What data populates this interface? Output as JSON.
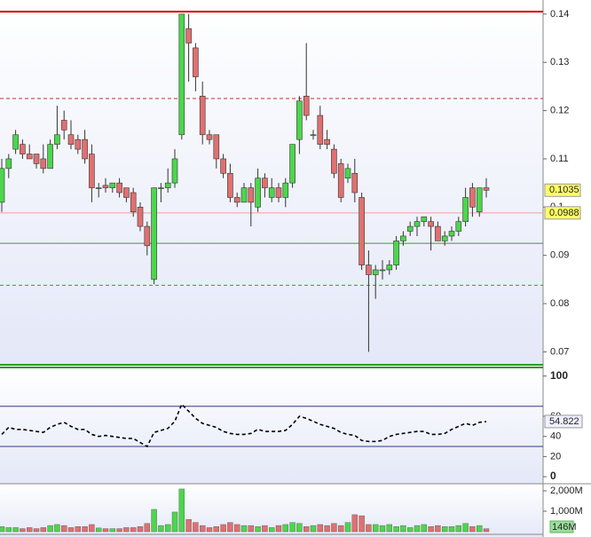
{
  "chart_data": [
    {
      "type": "candlestick",
      "open": [
        0.101,
        0.108,
        0.112,
        0.113,
        0.111,
        0.111,
        0.11,
        0.108,
        0.113,
        0.118,
        0.115,
        0.114,
        0.114,
        0.111,
        0.104,
        0.1045,
        0.104,
        0.105,
        0.104,
        0.103,
        0.1,
        0.096,
        0.085,
        0.104,
        0.104,
        0.105,
        0.115,
        0.137,
        0.133,
        0.123,
        0.115,
        0.115,
        0.11,
        0.107,
        0.102,
        0.101,
        0.104,
        0.1,
        0.106,
        0.102,
        0.104,
        0.102,
        0.105,
        0.114,
        0.123,
        0.115,
        0.119,
        0.114,
        0.112,
        0.109,
        0.106,
        0.107,
        0.102,
        0.088,
        0.086,
        0.087,
        0.087,
        0.088,
        0.093,
        0.095,
        0.096,
        0.097,
        0.097,
        0.096,
        0.093,
        0.094,
        0.095,
        0.097,
        0.104,
        0.099,
        0.104
      ],
      "high": [
        0.11,
        0.111,
        0.116,
        0.114,
        0.113,
        0.111,
        0.113,
        0.114,
        0.121,
        0.12,
        0.118,
        0.115,
        0.116,
        0.113,
        0.105,
        0.106,
        0.105,
        0.106,
        0.104,
        0.104,
        0.101,
        0.097,
        0.104,
        0.105,
        0.108,
        0.112,
        0.14,
        0.14,
        0.134,
        0.126,
        0.116,
        0.115,
        0.111,
        0.109,
        0.103,
        0.105,
        0.105,
        0.108,
        0.107,
        0.106,
        0.105,
        0.106,
        0.113,
        0.123,
        0.134,
        0.116,
        0.121,
        0.116,
        0.113,
        0.11,
        0.109,
        0.11,
        0.103,
        0.091,
        0.088,
        0.089,
        0.089,
        0.094,
        0.095,
        0.097,
        0.098,
        0.098,
        0.098,
        0.097,
        0.095,
        0.096,
        0.098,
        0.104,
        0.105,
        0.104,
        0.106
      ],
      "low": [
        0.099,
        0.106,
        0.111,
        0.11,
        0.11,
        0.108,
        0.107,
        0.108,
        0.112,
        0.114,
        0.112,
        0.111,
        0.109,
        0.101,
        0.102,
        0.103,
        0.103,
        0.102,
        0.101,
        0.098,
        0.095,
        0.09,
        0.084,
        0.101,
        0.103,
        0.104,
        0.114,
        0.126,
        0.124,
        0.113,
        0.113,
        0.108,
        0.106,
        0.101,
        0.1,
        0.101,
        0.096,
        0.099,
        0.102,
        0.101,
        0.101,
        0.1,
        0.104,
        0.111,
        0.118,
        0.114,
        0.112,
        0.112,
        0.106,
        0.101,
        0.105,
        0.101,
        0.087,
        0.07,
        0.081,
        0.085,
        0.086,
        0.087,
        0.092,
        0.094,
        0.094,
        0.096,
        0.091,
        0.093,
        0.092,
        0.093,
        0.094,
        0.096,
        0.098,
        0.098,
        0.102
      ],
      "close": [
        0.108,
        0.11,
        0.115,
        0.111,
        0.11,
        0.109,
        0.108,
        0.113,
        0.115,
        0.116,
        0.113,
        0.112,
        0.11,
        0.104,
        0.104,
        0.104,
        0.105,
        0.103,
        0.102,
        0.099,
        0.096,
        0.092,
        0.104,
        0.104,
        0.105,
        0.11,
        0.14,
        0.134,
        0.127,
        0.115,
        0.114,
        0.11,
        0.107,
        0.102,
        0.101,
        0.104,
        0.101,
        0.106,
        0.104,
        0.104,
        0.102,
        0.105,
        0.113,
        0.122,
        0.119,
        0.115,
        0.113,
        0.113,
        0.107,
        0.102,
        0.108,
        0.103,
        0.088,
        0.086,
        0.087,
        0.087,
        0.088,
        0.093,
        0.094,
        0.096,
        0.097,
        0.098,
        0.096,
        0.093,
        0.094,
        0.095,
        0.097,
        0.102,
        0.1,
        0.104,
        0.1035
      ],
      "up_color": "#4cd64c",
      "down_color": "#e07070",
      "ylim": [
        0.0675,
        0.142
      ],
      "yticks": [
        0.14,
        0.13,
        0.12,
        0.11,
        0.1,
        0.09,
        0.08,
        0.07
      ],
      "hlines": [
        {
          "value": 0.1405,
          "color": "#d40000",
          "dashed": false
        },
        {
          "value": 0.1225,
          "color": "#c03030",
          "dashed": true
        },
        {
          "value": 0.0988,
          "color": "#f0a0a0",
          "dashed": false
        },
        {
          "value": 0.0925,
          "color": "#3a9a3a",
          "dashed": false
        },
        {
          "value": 0.0838,
          "color": "#3a9a3a",
          "dashed": true
        }
      ]
    },
    {
      "type": "line",
      "values": [
        42,
        49,
        47,
        47,
        46,
        45,
        44,
        49,
        52,
        54,
        50,
        47,
        47,
        42,
        40,
        41,
        40,
        39,
        38,
        38,
        34,
        30,
        44,
        46,
        48,
        55,
        72,
        65,
        58,
        53,
        51,
        49,
        45,
        43,
        42,
        42,
        43,
        47,
        45,
        45,
        45,
        46,
        52,
        60,
        58,
        55,
        52,
        50,
        48,
        44,
        42,
        41,
        36,
        35,
        35,
        36,
        40,
        42,
        43,
        44,
        45,
        45,
        42,
        42,
        43,
        47,
        50,
        53,
        51,
        54,
        54.822
      ],
      "color": "#000000",
      "ylim": [
        -7,
        105
      ],
      "yticks": [
        100,
        60,
        40,
        20,
        0
      ],
      "hlines": [
        70,
        30
      ]
    },
    {
      "type": "bar",
      "values": [
        250,
        200,
        200,
        150,
        200,
        150,
        200,
        300,
        350,
        300,
        200,
        250,
        250,
        350,
        180,
        150,
        150,
        150,
        200,
        200,
        250,
        400,
        1090,
        300,
        350,
        960,
        2090,
        600,
        450,
        300,
        200,
        250,
        350,
        450,
        350,
        300,
        300,
        250,
        300,
        200,
        300,
        350,
        450,
        400,
        250,
        300,
        350,
        300,
        400,
        300,
        450,
        830,
        780,
        350,
        350,
        300,
        350,
        250,
        300,
        200,
        300,
        350,
        250,
        300,
        250,
        250,
        300,
        400,
        250,
        300,
        146
      ],
      "last_value_label": "146M",
      "ylim": [
        0,
        2260
      ],
      "yticks": [
        {
          "value": 2000,
          "label": "2,000M"
        },
        {
          "value": 1000,
          "label": "1,000M"
        }
      ]
    }
  ]
}
